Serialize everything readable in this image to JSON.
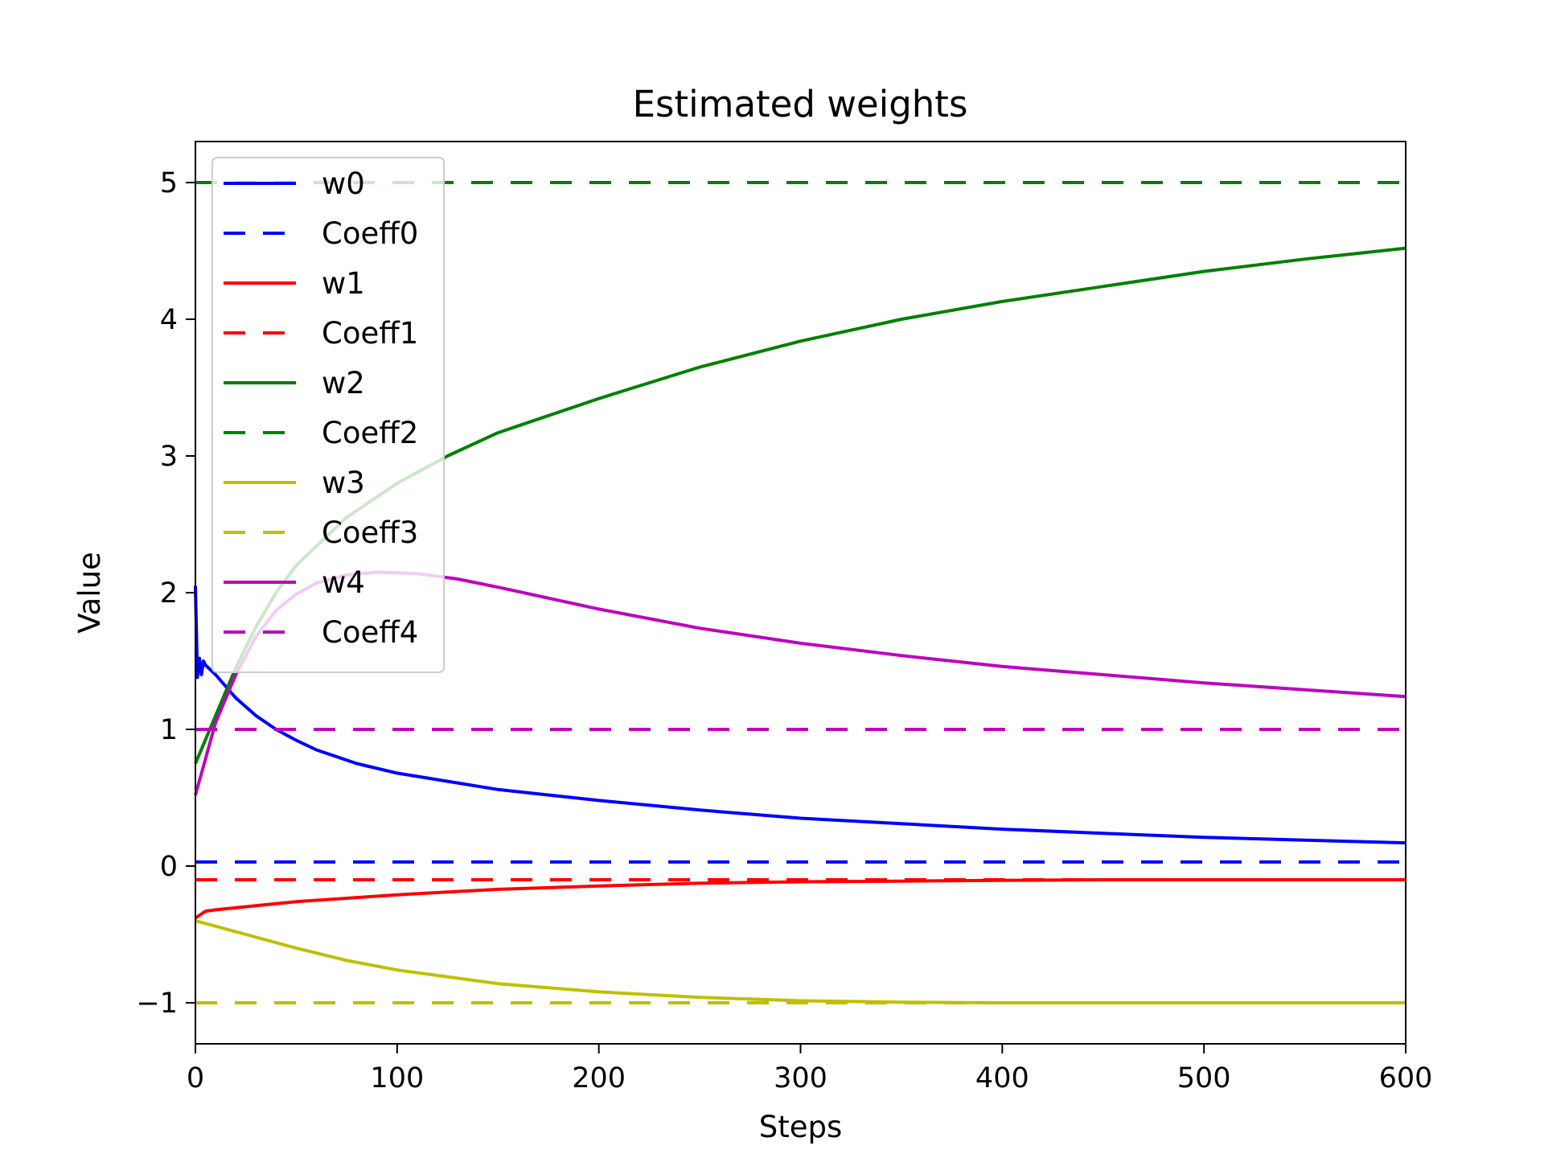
{
  "chart_data": {
    "type": "line",
    "title": "Estimated weights",
    "xlabel": "Steps",
    "ylabel": "Value",
    "xlim": [
      0,
      600
    ],
    "ylim": [
      -1.3,
      5.3
    ],
    "xticks": [
      0,
      100,
      200,
      300,
      400,
      500,
      600
    ],
    "xtick_labels": [
      "0",
      "100",
      "200",
      "300",
      "400",
      "500",
      "600"
    ],
    "yticks": [
      -1,
      0,
      1,
      2,
      3,
      4,
      5
    ],
    "ytick_labels": [
      "−1",
      "0",
      "1",
      "2",
      "3",
      "4",
      "5"
    ],
    "grid": false,
    "legend_position": "upper-left",
    "series": [
      {
        "name": "w0",
        "color": "#0000ff",
        "style": "solid",
        "x": [
          0,
          1,
          2,
          3,
          4,
          5,
          10,
          20,
          30,
          40,
          50,
          60,
          80,
          100,
          150,
          200,
          250,
          300,
          350,
          400,
          450,
          500,
          550,
          600
        ],
        "y": [
          2.05,
          1.38,
          1.52,
          1.4,
          1.5,
          1.47,
          1.4,
          1.23,
          1.1,
          1.0,
          0.92,
          0.85,
          0.75,
          0.68,
          0.56,
          0.48,
          0.41,
          0.35,
          0.31,
          0.27,
          0.24,
          0.21,
          0.19,
          0.17
        ]
      },
      {
        "name": "Coeff0",
        "color": "#0000ff",
        "style": "dashed",
        "x": [
          0,
          600
        ],
        "y": [
          0.03,
          0.03
        ]
      },
      {
        "name": "w1",
        "color": "#ff0000",
        "style": "solid",
        "x": [
          0,
          5,
          10,
          30,
          50,
          100,
          150,
          200,
          250,
          300,
          350,
          400,
          450,
          500,
          550,
          600
        ],
        "y": [
          -0.38,
          -0.33,
          -0.32,
          -0.29,
          -0.26,
          -0.21,
          -0.17,
          -0.145,
          -0.125,
          -0.115,
          -0.11,
          -0.105,
          -0.1,
          -0.1,
          -0.1,
          -0.1
        ]
      },
      {
        "name": "Coeff1",
        "color": "#ff0000",
        "style": "dashed",
        "x": [
          0,
          600
        ],
        "y": [
          -0.1,
          -0.1
        ]
      },
      {
        "name": "w2",
        "color": "#008000",
        "style": "solid",
        "x": [
          0,
          10,
          20,
          30,
          40,
          50,
          75,
          100,
          125,
          150,
          200,
          250,
          300,
          350,
          400,
          450,
          500,
          550,
          600
        ],
        "y": [
          0.75,
          1.1,
          1.45,
          1.75,
          2.0,
          2.2,
          2.55,
          2.8,
          3.0,
          3.17,
          3.42,
          3.65,
          3.84,
          4.0,
          4.13,
          4.24,
          4.35,
          4.44,
          4.52
        ]
      },
      {
        "name": "Coeff2",
        "color": "#008000",
        "style": "dashed",
        "x": [
          0,
          600
        ],
        "y": [
          5.0,
          5.0
        ]
      },
      {
        "name": "w3",
        "color": "#bfbf00",
        "style": "solid",
        "x": [
          0,
          25,
          50,
          75,
          100,
          150,
          200,
          250,
          300,
          350,
          400,
          450,
          500,
          550,
          600
        ],
        "y": [
          -0.4,
          -0.5,
          -0.6,
          -0.69,
          -0.76,
          -0.86,
          -0.92,
          -0.96,
          -0.985,
          -0.995,
          -1.0,
          -1.0,
          -1.0,
          -1.0,
          -1.0
        ]
      },
      {
        "name": "Coeff3",
        "color": "#bfbf00",
        "style": "dashed",
        "x": [
          0,
          600
        ],
        "y": [
          -1.0,
          -1.0
        ]
      },
      {
        "name": "w4",
        "color": "#bf00bf",
        "style": "solid",
        "x": [
          0,
          10,
          20,
          30,
          40,
          50,
          60,
          75,
          90,
          110,
          130,
          150,
          200,
          250,
          300,
          350,
          400,
          450,
          500,
          550,
          600
        ],
        "y": [
          0.52,
          1.05,
          1.4,
          1.68,
          1.87,
          1.99,
          2.07,
          2.13,
          2.15,
          2.14,
          2.1,
          2.04,
          1.88,
          1.74,
          1.63,
          1.54,
          1.46,
          1.4,
          1.34,
          1.29,
          1.24
        ]
      },
      {
        "name": "Coeff4",
        "color": "#bf00bf",
        "style": "dashed",
        "x": [
          0,
          600
        ],
        "y": [
          1.0,
          1.0
        ]
      }
    ]
  }
}
